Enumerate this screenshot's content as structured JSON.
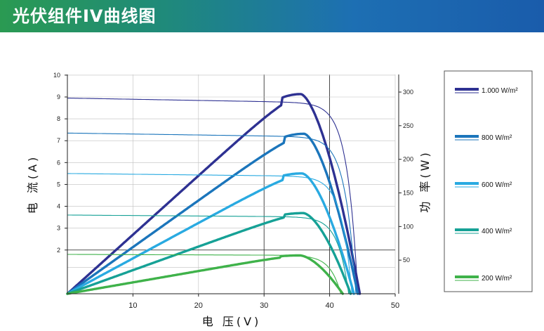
{
  "header": {
    "title": "光伏组件IV曲线图"
  },
  "chart_data": {
    "type": "line",
    "xlabel": "电 压(V)",
    "ylabel": "电 流(A)",
    "y2label": "功 率(W)",
    "xlim": [
      0,
      50
    ],
    "ylim": [
      0,
      10
    ],
    "y2lim": [
      0,
      330
    ],
    "xticks": [
      10,
      20,
      30,
      40,
      50
    ],
    "yticks": [
      2,
      3,
      4,
      5,
      6,
      7,
      8,
      9,
      10
    ],
    "y2ticks": [
      50,
      100,
      150,
      200,
      250,
      300
    ],
    "series": [
      {
        "name": "1.000 W/m²",
        "color": "#2e3192",
        "isc": 8.95,
        "voc": 44.3,
        "vmp": 35.6,
        "pmax": 297
      },
      {
        "name": "800 W/m²",
        "color": "#1b75bb",
        "isc": 7.35,
        "voc": 44.0,
        "vmp": 36.1,
        "pmax": 238
      },
      {
        "name": "600 W/m²",
        "color": "#29aae1",
        "isc": 5.5,
        "voc": 43.4,
        "vmp": 35.8,
        "pmax": 179
      },
      {
        "name": "400 W/m²",
        "color": "#16a196",
        "isc": 3.6,
        "voc": 42.9,
        "vmp": 36.0,
        "pmax": 120
      },
      {
        "name": "200 W/m²",
        "color": "#3fb24a",
        "isc": 1.8,
        "voc": 41.7,
        "vmp": 35.5,
        "pmax": 57
      }
    ]
  }
}
